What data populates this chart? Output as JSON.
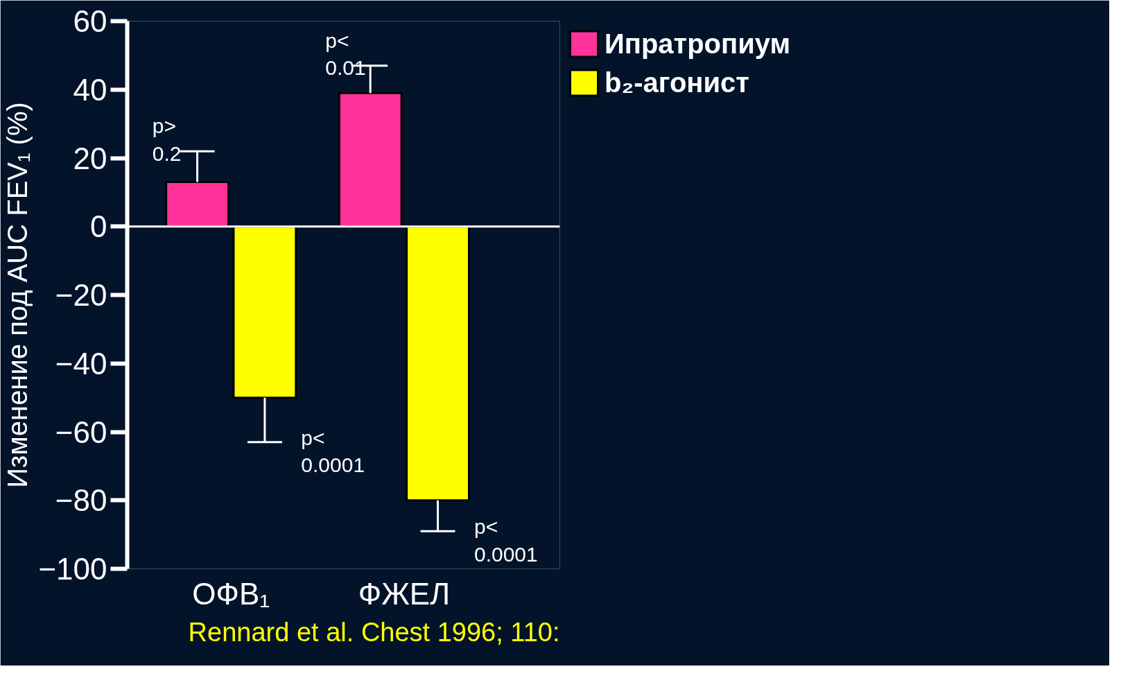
{
  "chart_data": {
    "type": "bar",
    "ylabel": "Изменение под AUC FEV₁ (%)",
    "categories": [
      "ОФВ₁",
      "ФЖЕЛ"
    ],
    "series": [
      {
        "name": "Ипратропиум",
        "color": "#ff3399",
        "values": [
          13,
          39
        ],
        "errors": [
          [
            13,
            22
          ],
          [
            39,
            47
          ]
        ]
      },
      {
        "name": "b₂-агонист",
        "color": "#ffff00",
        "values": [
          -50,
          -80
        ],
        "errors": [
          [
            -63,
            -50
          ],
          [
            -89,
            -80
          ]
        ]
      }
    ],
    "ylim": [
      -100,
      60
    ],
    "yticks": [
      60,
      40,
      20,
      0,
      -20,
      -40,
      -60,
      -80,
      -100
    ],
    "ref_lines": [
      {
        "axis": "y",
        "value": 0,
        "color": "#ffffff"
      }
    ],
    "annotations": [
      "p> 0.2",
      "p< 0.0001",
      "p< 0.01",
      "p< 0.0001",
      "Rennard et al. Chest 1996; 110:"
    ],
    "legend": "top right",
    "grid": false
  }
}
